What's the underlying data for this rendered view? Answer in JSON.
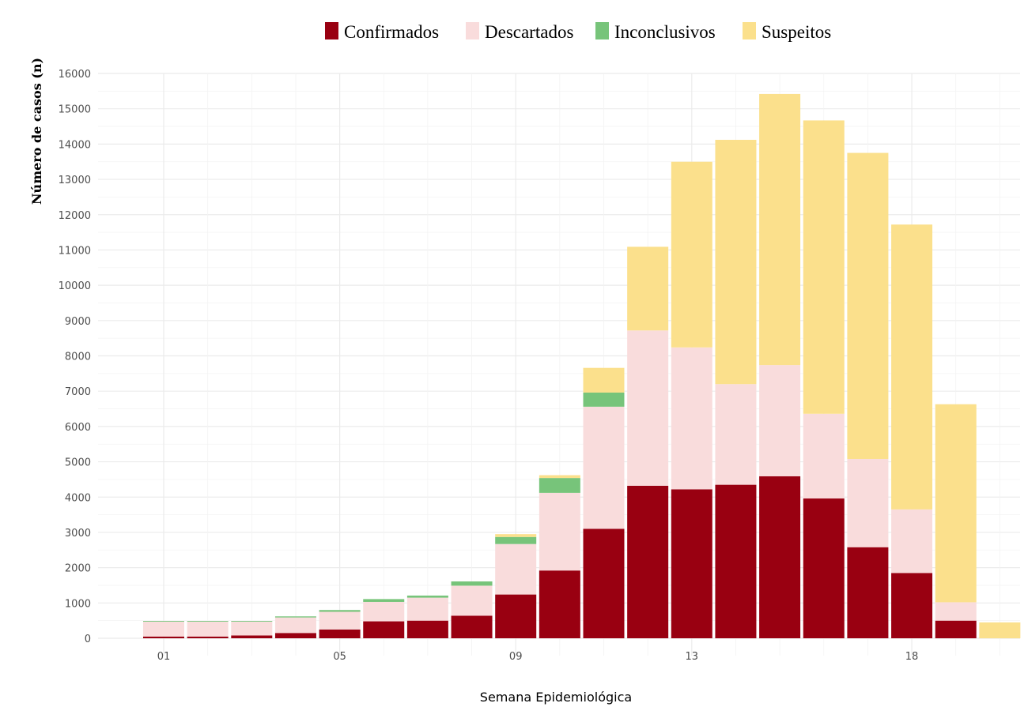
{
  "chart_data": {
    "type": "bar",
    "stacked": true,
    "xlabel": "Semana Epidemiológica",
    "ylabel": "Número de casos (n)",
    "ylim": [
      0,
      16000
    ],
    "yticks": [
      0,
      1000,
      2000,
      3000,
      4000,
      5000,
      6000,
      7000,
      8000,
      9000,
      10000,
      11000,
      12000,
      13000,
      14000,
      15000,
      16000
    ],
    "legend_position": "top",
    "grid": true,
    "categories": [
      "01",
      "02",
      "03",
      "04",
      "05",
      "06",
      "07",
      "08",
      "09",
      "10",
      "11",
      "12",
      "13",
      "14",
      "15",
      "16",
      "17",
      "18",
      "19",
      "20"
    ],
    "x_tick_labels": [
      {
        "category": "01",
        "label": "01"
      },
      {
        "category": "05",
        "label": "05"
      },
      {
        "category": "09",
        "label": "09"
      },
      {
        "category": "13",
        "label": "13"
      },
      {
        "category": "18",
        "label": "18"
      }
    ],
    "series": [
      {
        "name": "Confirmados",
        "color": "#990011",
        "values": [
          50,
          50,
          80,
          150,
          250,
          480,
          500,
          640,
          1240,
          1920,
          3100,
          4320,
          4220,
          4350,
          4590,
          3960,
          2580,
          1850,
          500,
          0
        ]
      },
      {
        "name": "Descartados",
        "color": "#f9dcdc",
        "values": [
          420,
          420,
          390,
          440,
          500,
          550,
          650,
          850,
          1430,
          2200,
          3460,
          4400,
          4020,
          2850,
          3150,
          2400,
          2500,
          1800,
          520,
          0
        ]
      },
      {
        "name": "Inconclusivos",
        "color": "#77c47a",
        "values": [
          20,
          20,
          20,
          30,
          50,
          80,
          60,
          120,
          200,
          420,
          400,
          0,
          0,
          0,
          0,
          0,
          0,
          0,
          0,
          0
        ]
      },
      {
        "name": "Suspeitos",
        "color": "#fbe08c",
        "values": [
          0,
          0,
          0,
          0,
          0,
          0,
          0,
          0,
          80,
          80,
          700,
          2370,
          5260,
          6920,
          7680,
          8310,
          8670,
          8070,
          5610,
          450
        ]
      }
    ]
  }
}
